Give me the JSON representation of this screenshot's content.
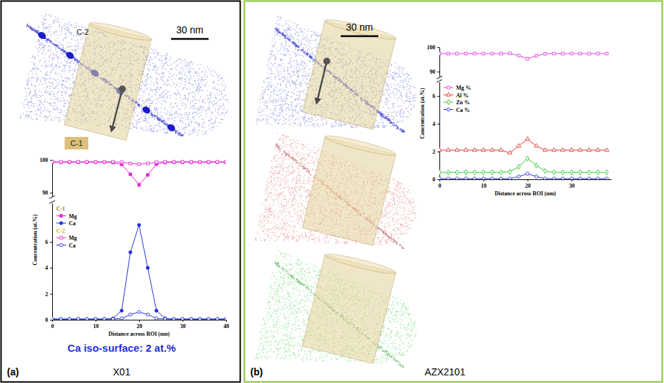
{
  "panels": [
    {
      "label": "(a)",
      "name": "X01",
      "scale_bar": "30 nm",
      "roi_labels": [
        "C-2",
        "C-1"
      ],
      "annotation": "Ca iso-surface: 2 at.%"
    },
    {
      "label": "(b)",
      "name": "AZX2101",
      "scale_bar": "30 nm"
    }
  ],
  "chart_data": [
    {
      "type": "line",
      "x_label": "Distance across ROI (nm)",
      "y_label": "Concentration (at.%)",
      "x": [
        0,
        2,
        4,
        6,
        8,
        10,
        12,
        14,
        16,
        18,
        20,
        22,
        24,
        26,
        28,
        30,
        32,
        34,
        36,
        38,
        40
      ],
      "xlim": [
        0,
        40
      ],
      "xticks": [
        0,
        10,
        20,
        30,
        40
      ],
      "ylim": [
        0,
        9
      ],
      "yticks": [
        0,
        2,
        4,
        6
      ],
      "y2lim": [
        89,
        100
      ],
      "y2ticks": [
        90,
        100
      ],
      "legend": "upper left",
      "series": [
        {
          "name": "Mg",
          "group": "C-1",
          "color": "#e22bd0",
          "marker": "square",
          "axis": "y2",
          "values": [
            99.3,
            99.3,
            99.3,
            99.3,
            99.3,
            99.3,
            99.3,
            99.2,
            98.6,
            95.6,
            92.4,
            95.4,
            98.7,
            99.2,
            99.3,
            99.3,
            99.3,
            99.3,
            99.3,
            99.3,
            99.3
          ]
        },
        {
          "name": "Ca",
          "group": "C-1",
          "color": "#1f2fe0",
          "marker": "circle",
          "values": [
            0.05,
            0.05,
            0.05,
            0.05,
            0.05,
            0.05,
            0.05,
            0.1,
            0.7,
            5.2,
            7.3,
            4.0,
            0.7,
            0.1,
            0.05,
            0.05,
            0.05,
            0.05,
            0.05,
            0.05,
            0.05
          ]
        },
        {
          "name": "Mg",
          "group": "C-2",
          "color": "#e22bd0",
          "marker": "square-open",
          "axis": "y2",
          "values": [
            99.4,
            99.4,
            99.4,
            99.4,
            99.4,
            99.4,
            99.4,
            99.4,
            99.3,
            98.9,
            98.7,
            98.9,
            99.3,
            99.4,
            99.4,
            99.4,
            99.4,
            99.4,
            99.4,
            99.4,
            99.4
          ]
        },
        {
          "name": "Ca",
          "group": "C-2",
          "color": "#1f2fe0",
          "marker": "circle-open",
          "values": [
            0.05,
            0.05,
            0.05,
            0.05,
            0.05,
            0.05,
            0.05,
            0.05,
            0.1,
            0.4,
            0.6,
            0.4,
            0.1,
            0.05,
            0.05,
            0.05,
            0.05,
            0.05,
            0.05,
            0.05,
            0.05
          ]
        }
      ]
    },
    {
      "type": "line",
      "x_label": "Distance across ROI (nm)",
      "y_label": "Concentration (at.%)",
      "x": [
        0,
        2,
        4,
        6,
        8,
        10,
        12,
        14,
        16,
        18,
        20,
        22,
        24,
        26,
        28,
        30,
        32,
        34,
        36,
        38
      ],
      "xlim": [
        0,
        39
      ],
      "xticks": [
        0,
        10,
        20,
        30
      ],
      "ylim": [
        0,
        7
      ],
      "yticks": [
        0,
        2,
        4,
        6
      ],
      "y2lim": [
        88,
        100
      ],
      "y2ticks": [
        90,
        100
      ],
      "legend": "upper left",
      "series": [
        {
          "name": "Mg %",
          "color": "#e040e0",
          "marker": "square-open",
          "axis": "y2",
          "values": [
            97.4,
            97.4,
            97.4,
            97.4,
            97.4,
            97.4,
            97.4,
            97.4,
            97.5,
            96.6,
            95.3,
            96.5,
            97.3,
            97.4,
            97.4,
            97.4,
            97.4,
            97.4,
            97.4,
            97.4
          ]
        },
        {
          "name": "Al %",
          "color": "#e8302a",
          "marker": "triangle-open",
          "values": [
            2.1,
            2.1,
            2.1,
            2.1,
            2.1,
            2.1,
            2.1,
            2.1,
            1.9,
            2.4,
            2.9,
            2.4,
            2.1,
            2.1,
            2.1,
            2.1,
            2.1,
            2.1,
            2.1,
            2.1
          ]
        },
        {
          "name": "Zn %",
          "color": "#33c733",
          "marker": "diamond-open",
          "values": [
            0.5,
            0.5,
            0.5,
            0.5,
            0.5,
            0.5,
            0.5,
            0.5,
            0.55,
            0.9,
            1.5,
            1.0,
            0.6,
            0.5,
            0.5,
            0.5,
            0.5,
            0.5,
            0.5,
            0.5
          ]
        },
        {
          "name": "Ca %",
          "color": "#3030e0",
          "marker": "circle-open",
          "values": [
            0.05,
            0.05,
            0.05,
            0.05,
            0.05,
            0.05,
            0.05,
            0.05,
            0.05,
            0.2,
            0.4,
            0.2,
            0.05,
            0.05,
            0.05,
            0.05,
            0.05,
            0.05,
            0.05,
            0.05
          ]
        }
      ]
    }
  ]
}
